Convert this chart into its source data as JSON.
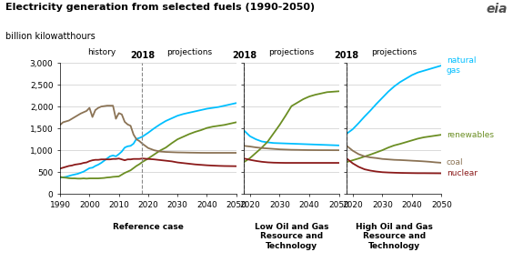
{
  "title": "Electricity generation from selected fuels (1990-2050)",
  "subtitle": "billion kilowatthours",
  "colors": {
    "natural_gas": "#00BFFF",
    "renewables": "#6B8E23",
    "coal": "#8B7355",
    "nuclear": "#8B1A1A"
  },
  "panel1": {
    "label": "Reference case",
    "xlim": [
      1990,
      2050
    ],
    "split_year": 2018,
    "natural_gas": {
      "x": [
        1990,
        1991,
        1992,
        1993,
        1994,
        1995,
        1996,
        1997,
        1998,
        1999,
        2000,
        2001,
        2002,
        2003,
        2004,
        2005,
        2006,
        2007,
        2008,
        2009,
        2010,
        2011,
        2012,
        2013,
        2014,
        2015,
        2016,
        2017,
        2018,
        2020,
        2022,
        2024,
        2026,
        2028,
        2030,
        2032,
        2034,
        2036,
        2038,
        2040,
        2042,
        2044,
        2046,
        2048,
        2050
      ],
      "y": [
        370,
        380,
        390,
        410,
        430,
        445,
        460,
        485,
        510,
        550,
        590,
        600,
        640,
        670,
        710,
        760,
        810,
        860,
        880,
        860,
        910,
        970,
        1060,
        1090,
        1100,
        1150,
        1260,
        1280,
        1310,
        1400,
        1500,
        1590,
        1670,
        1730,
        1790,
        1830,
        1860,
        1890,
        1920,
        1950,
        1970,
        1990,
        2020,
        2050,
        2080
      ]
    },
    "renewables": {
      "x": [
        1990,
        1991,
        1992,
        1993,
        1994,
        1995,
        1996,
        1997,
        1998,
        1999,
        2000,
        2001,
        2002,
        2003,
        2004,
        2005,
        2006,
        2007,
        2008,
        2009,
        2010,
        2011,
        2012,
        2013,
        2014,
        2015,
        2016,
        2017,
        2018,
        2020,
        2022,
        2024,
        2026,
        2028,
        2030,
        2032,
        2034,
        2036,
        2038,
        2040,
        2042,
        2044,
        2046,
        2048,
        2050
      ],
      "y": [
        390,
        375,
        370,
        360,
        355,
        355,
        350,
        350,
        355,
        350,
        355,
        355,
        355,
        355,
        360,
        365,
        375,
        380,
        390,
        395,
        400,
        440,
        480,
        510,
        540,
        590,
        640,
        680,
        730,
        810,
        900,
        990,
        1060,
        1160,
        1250,
        1310,
        1370,
        1420,
        1460,
        1510,
        1540,
        1560,
        1580,
        1610,
        1640
      ]
    },
    "coal": {
      "x": [
        1990,
        1991,
        1992,
        1993,
        1994,
        1995,
        1996,
        1997,
        1998,
        1999,
        2000,
        2001,
        2002,
        2003,
        2004,
        2005,
        2006,
        2007,
        2008,
        2009,
        2010,
        2011,
        2012,
        2013,
        2014,
        2015,
        2016,
        2017,
        2018,
        2020,
        2022,
        2024,
        2026,
        2028,
        2030,
        2032,
        2034,
        2036,
        2038,
        2040,
        2042,
        2044,
        2046,
        2048,
        2050
      ],
      "y": [
        1580,
        1640,
        1660,
        1680,
        1720,
        1760,
        1800,
        1840,
        1870,
        1900,
        1970,
        1760,
        1920,
        1970,
        2000,
        2010,
        2020,
        2020,
        2020,
        1720,
        1850,
        1820,
        1650,
        1590,
        1560,
        1360,
        1250,
        1210,
        1150,
        1050,
        1000,
        970,
        960,
        955,
        950,
        948,
        945,
        943,
        941,
        940,
        940,
        940,
        940,
        940,
        940
      ]
    },
    "nuclear": {
      "x": [
        1990,
        1991,
        1992,
        1993,
        1994,
        1995,
        1996,
        1997,
        1998,
        1999,
        2000,
        2001,
        2002,
        2003,
        2004,
        2005,
        2006,
        2007,
        2008,
        2009,
        2010,
        2011,
        2012,
        2013,
        2014,
        2015,
        2016,
        2017,
        2018,
        2020,
        2022,
        2024,
        2026,
        2028,
        2030,
        2032,
        2034,
        2036,
        2038,
        2040,
        2042,
        2044,
        2046,
        2048,
        2050
      ],
      "y": [
        580,
        600,
        620,
        640,
        650,
        670,
        680,
        690,
        710,
        720,
        750,
        770,
        780,
        780,
        790,
        790,
        790,
        790,
        800,
        800,
        810,
        790,
        770,
        790,
        790,
        800,
        800,
        800,
        810,
        800,
        790,
        775,
        760,
        745,
        720,
        705,
        690,
        675,
        665,
        655,
        648,
        642,
        638,
        636,
        634
      ]
    }
  },
  "panel2": {
    "label": "Low Oil and Gas\nResource and\nTechnology",
    "xlim": [
      2018,
      2050
    ],
    "split_year": 2018,
    "natural_gas": {
      "x": [
        2018,
        2020,
        2022,
        2024,
        2026,
        2028,
        2030,
        2032,
        2034,
        2036,
        2038,
        2040,
        2042,
        2044,
        2046,
        2048,
        2050
      ],
      "y": [
        1450,
        1320,
        1250,
        1200,
        1180,
        1165,
        1160,
        1155,
        1150,
        1145,
        1140,
        1135,
        1130,
        1125,
        1120,
        1115,
        1110
      ]
    },
    "renewables": {
      "x": [
        2018,
        2020,
        2022,
        2024,
        2026,
        2028,
        2030,
        2032,
        2034,
        2036,
        2038,
        2040,
        2042,
        2044,
        2046,
        2048,
        2050
      ],
      "y": [
        730,
        820,
        940,
        1060,
        1200,
        1390,
        1580,
        1790,
        2010,
        2090,
        2170,
        2230,
        2270,
        2300,
        2330,
        2340,
        2350
      ]
    },
    "coal": {
      "x": [
        2018,
        2020,
        2022,
        2024,
        2026,
        2028,
        2030,
        2032,
        2034,
        2036,
        2038,
        2040,
        2042,
        2044,
        2046,
        2048,
        2050
      ],
      "y": [
        1100,
        1085,
        1065,
        1050,
        1040,
        1030,
        1020,
        1015,
        1010,
        1008,
        1005,
        1003,
        1002,
        1001,
        1001,
        1000,
        1000
      ]
    },
    "nuclear": {
      "x": [
        2018,
        2020,
        2022,
        2024,
        2026,
        2028,
        2030,
        2032,
        2034,
        2036,
        2038,
        2040,
        2042,
        2044,
        2046,
        2048,
        2050
      ],
      "y": [
        810,
        780,
        755,
        735,
        722,
        715,
        712,
        710,
        710,
        710,
        710,
        710,
        710,
        710,
        710,
        710,
        710
      ]
    }
  },
  "panel3": {
    "label": "High Oil and Gas\nResource and\nTechnology",
    "xlim": [
      2018,
      2050
    ],
    "split_year": 2018,
    "natural_gas": {
      "x": [
        2018,
        2020,
        2022,
        2024,
        2026,
        2028,
        2030,
        2032,
        2034,
        2036,
        2038,
        2040,
        2042,
        2044,
        2046,
        2048,
        2050
      ],
      "y": [
        1380,
        1480,
        1620,
        1770,
        1910,
        2060,
        2200,
        2340,
        2460,
        2560,
        2640,
        2720,
        2780,
        2820,
        2860,
        2900,
        2940
      ]
    },
    "renewables": {
      "x": [
        2018,
        2020,
        2022,
        2024,
        2026,
        2028,
        2030,
        2032,
        2034,
        2036,
        2038,
        2040,
        2042,
        2044,
        2046,
        2048,
        2050
      ],
      "y": [
        730,
        770,
        810,
        855,
        900,
        950,
        1000,
        1060,
        1110,
        1145,
        1185,
        1225,
        1265,
        1295,
        1315,
        1335,
        1355
      ]
    },
    "coal": {
      "x": [
        2018,
        2020,
        2022,
        2024,
        2026,
        2028,
        2030,
        2032,
        2034,
        2036,
        2038,
        2040,
        2042,
        2044,
        2046,
        2048,
        2050
      ],
      "y": [
        1100,
        990,
        910,
        860,
        835,
        820,
        800,
        790,
        780,
        775,
        768,
        760,
        753,
        745,
        735,
        722,
        712
      ]
    },
    "nuclear": {
      "x": [
        2018,
        2020,
        2022,
        2024,
        2026,
        2028,
        2030,
        2032,
        2034,
        2036,
        2038,
        2040,
        2042,
        2044,
        2046,
        2048,
        2050
      ],
      "y": [
        810,
        700,
        620,
        563,
        533,
        512,
        497,
        490,
        485,
        481,
        478,
        476,
        474,
        474,
        473,
        472,
        471
      ]
    }
  },
  "ylim": [
    0,
    3000
  ],
  "yticks": [
    0,
    500,
    1000,
    1500,
    2000,
    2500,
    3000
  ],
  "ytick_labels": [
    "0",
    "500",
    "1,000",
    "1,500",
    "2,000",
    "2,500",
    "3,000"
  ],
  "background_color": "#FFFFFF"
}
